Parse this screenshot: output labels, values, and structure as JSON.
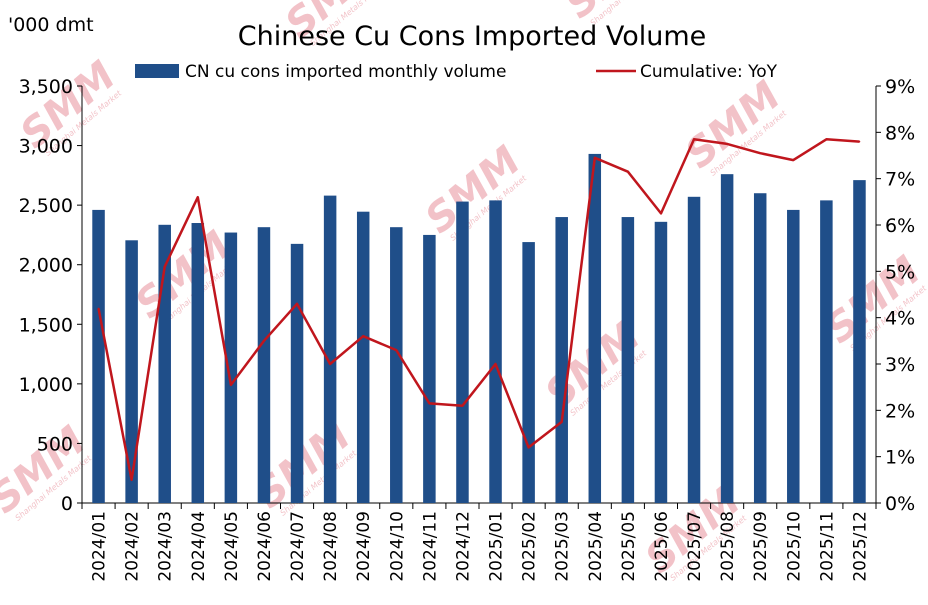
{
  "chart_data": {
    "type": "bar",
    "title": "Chinese Cu Cons Imported Volume",
    "y_unit_label": "'000 dmt",
    "categories": [
      "2024/01",
      "2024/02",
      "2024/03",
      "2024/04",
      "2024/05",
      "2024/06",
      "2024/07",
      "2024/08",
      "2024/09",
      "2024/10",
      "2024/11",
      "2024/12",
      "2025/01",
      "2025/02",
      "2025/03",
      "2025/04",
      "2025/05",
      "2025/06",
      "2025/07",
      "2025/08",
      "2025/09",
      "2025/10",
      "2025/11",
      "2025/12"
    ],
    "series": [
      {
        "name": "CN cu cons imported monthly volume",
        "type": "bar",
        "axis": "left",
        "color": "#1F4E89",
        "values": [
          2460,
          2205,
          2335,
          2350,
          2270,
          2315,
          2175,
          2580,
          2445,
          2315,
          2250,
          2530,
          2540,
          2190,
          2400,
          2930,
          2400,
          2360,
          2570,
          2760,
          2600,
          2460,
          2540,
          2710
        ]
      },
      {
        "name": "Cumulative: YoY",
        "type": "line",
        "axis": "right",
        "color": "#C0161D",
        "values": [
          4.2,
          0.5,
          5.1,
          6.6,
          2.55,
          3.5,
          4.3,
          3.0,
          3.6,
          3.3,
          2.15,
          2.1,
          3.0,
          1.2,
          1.75,
          7.45,
          7.15,
          6.25,
          7.85,
          7.75,
          7.55,
          7.4,
          7.85,
          7.8
        ]
      }
    ],
    "ylim": [
      0,
      3500
    ],
    "yticks": [
      "0",
      "500",
      "1,000",
      "1,500",
      "2,000",
      "2,500",
      "3,000",
      "3,500"
    ],
    "y2lim": [
      0,
      9
    ],
    "y2ticks": [
      "0%",
      "1%",
      "2%",
      "3%",
      "4%",
      "5%",
      "6%",
      "7%",
      "8%",
      "9%"
    ],
    "grid": false,
    "legend_position": "top"
  }
}
